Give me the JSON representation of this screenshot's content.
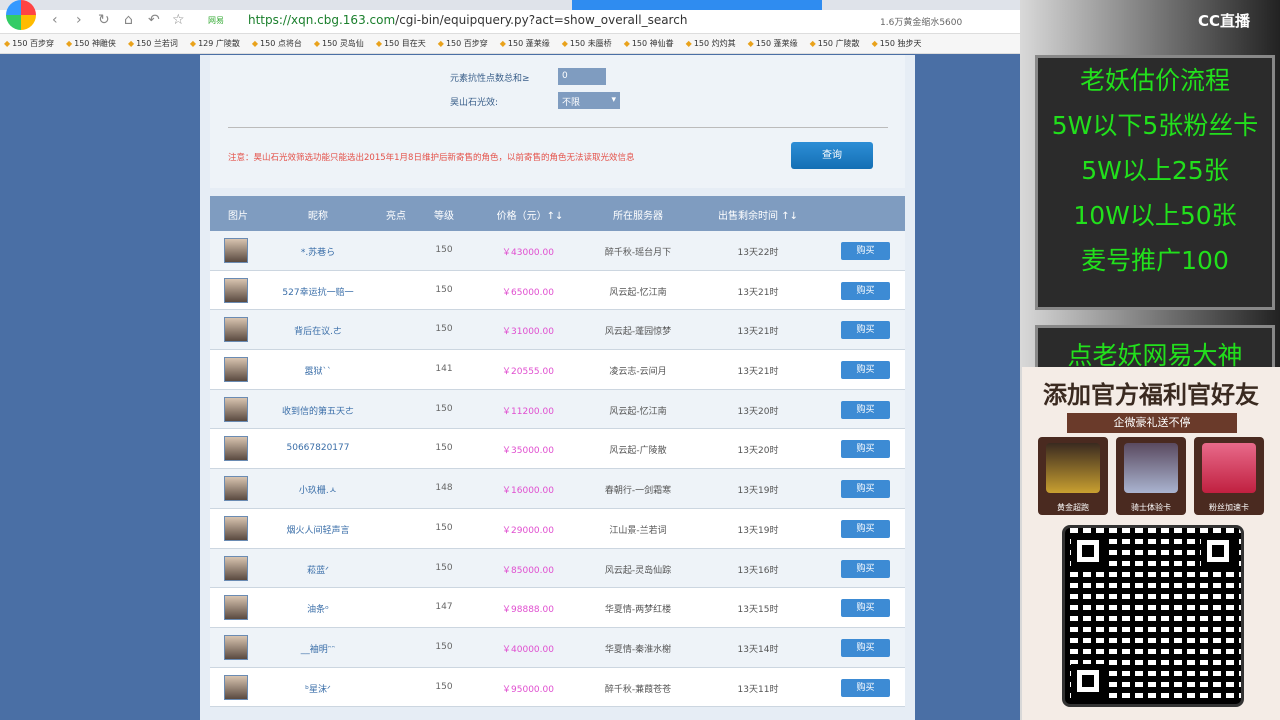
{
  "browser": {
    "tabs": [
      "",
      "",
      ""
    ],
    "url_host": "https://xqn.cbg.163.com",
    "url_path": "/cgi-bin/equipquery.py?act=show_overall_search",
    "security_badge": "网易",
    "search_hint": "1.6万黄金缩水5600",
    "bookmarks": [
      "150 百步穿",
      "150 神雕侠",
      "150 兰若词",
      "129 广陵散",
      "150 点将台",
      "150 灵岛仙",
      "150 目在天",
      "150 百步穿",
      "150 蓬莱缘",
      "150 未蜃桥",
      "150 神仙眷",
      "150 灼灼其",
      "150 蓬莱缘",
      "150 广陵散",
      "150 独步天"
    ]
  },
  "form": {
    "field_resist_label": "元素抗性点数总和≥",
    "field_resist_value": "0",
    "field_stone_label": "昊山石光效:",
    "field_stone_value": "不限",
    "notice": "注意：昊山石光效筛选功能只能选出2015年1月8日维护后新寄售的角色，以前寄售的角色无法读取光效信息",
    "query_button": "查询"
  },
  "table": {
    "headers": [
      "图片",
      "昵称",
      "亮点",
      "等级",
      "价格（元）↑↓",
      "所在服务器",
      "出售剩余时间 ↑↓"
    ],
    "buy_label": "购买",
    "rows": [
      {
        "name": "*.苏巷ら",
        "level": "150",
        "price": "￥43000.00",
        "server": "醉千秋-瑶台月下",
        "time": "13天22时"
      },
      {
        "name": "527幸运抗一赔一",
        "level": "150",
        "price": "￥65000.00",
        "server": "风云起-忆江南",
        "time": "13天21时"
      },
      {
        "name": "背后在议.ㄜ",
        "level": "150",
        "price": "￥31000.00",
        "server": "风云起-蓬园惊梦",
        "time": "13天21时"
      },
      {
        "name": "嚣狱``",
        "level": "141",
        "price": "￥20555.00",
        "server": "凌云志-云间月",
        "time": "13天21时"
      },
      {
        "name": "收到信的第五天ㄜ",
        "level": "150",
        "price": "￥11200.00",
        "server": "风云起-忆江南",
        "time": "13天20时"
      },
      {
        "name": "50667820177",
        "level": "150",
        "price": "￥35000.00",
        "server": "风云起-广陵散",
        "time": "13天20时"
      },
      {
        "name": "小玖栅.ㅅ",
        "level": "148",
        "price": "￥16000.00",
        "server": "春朝行-一剑霜寒",
        "time": "13天19时"
      },
      {
        "name": "烟火人间轻声言",
        "level": "150",
        "price": "￥29000.00",
        "server": "江山景-兰若词",
        "time": "13天19时"
      },
      {
        "name": "菘蓝ᐟ",
        "level": "150",
        "price": "￥85000.00",
        "server": "风云起-灵岛仙踪",
        "time": "13天16时"
      },
      {
        "name": "油条ᵒ",
        "level": "147",
        "price": "￥98888.00",
        "server": "华夏情-两梦红楼",
        "time": "13天15时"
      },
      {
        "name": "__袖明ᵔᵔ",
        "level": "150",
        "price": "￥40000.00",
        "server": "华夏情-秦淮水榭",
        "time": "13天14时"
      },
      {
        "name": "ᵇ星沫ᐟ",
        "level": "150",
        "price": "￥95000.00",
        "server": "醉千秋-蒹葭苍苍",
        "time": "13天11时"
      }
    ]
  },
  "side": {
    "logo": "CC直播",
    "board_lines": [
      "老妖估价流程",
      "5W以下5张粉丝卡",
      "5W以上25张",
      "10W以上50张",
      "麦号推广100"
    ],
    "board2": "点老妖网易大神",
    "ad_title": "添加官方福利官好友",
    "ad_sub": "企微豪礼送不停",
    "gifts": [
      "黄金超跑",
      "骑士体验卡",
      "粉丝加速卡"
    ]
  }
}
